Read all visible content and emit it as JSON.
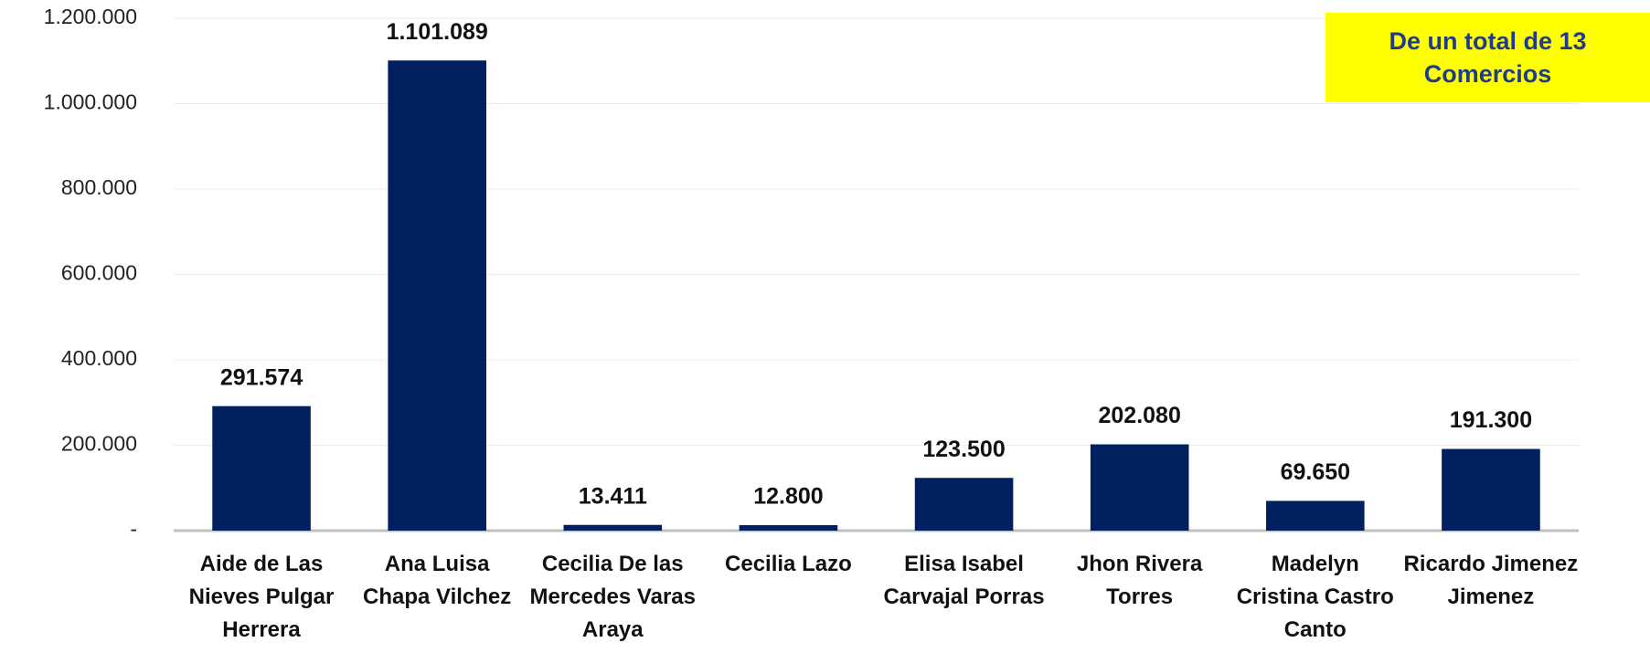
{
  "chart_data": {
    "type": "bar",
    "categories": [
      "Aide de Las Nieves Pulgar Herrera",
      "Ana Luisa Chapa Vilchez",
      "Cecilia De las Mercedes Varas Araya",
      "Cecilia Lazo",
      "Elisa Isabel Carvajal Porras",
      "Jhon Rivera Torres",
      "Madelyn Cristina Castro Canto",
      "Ricardo Jimenez Jimenez"
    ],
    "values": [
      291574,
      1101089,
      13411,
      12800,
      123500,
      202080,
      69650,
      191300
    ],
    "value_labels": [
      "291.574",
      "1.101.089",
      "13.411",
      "12.800",
      "123.500",
      "202.080",
      "69.650",
      "191.300"
    ],
    "color": "#002060",
    "ylim": [
      0,
      1200000
    ],
    "yticks": [
      {
        "value": 0,
        "label": "-"
      },
      {
        "value": 200000,
        "label": "200.000"
      },
      {
        "value": 400000,
        "label": "400.000"
      },
      {
        "value": 600000,
        "label": "600.000"
      },
      {
        "value": 800000,
        "label": "800.000"
      },
      {
        "value": 1000000,
        "label": "1.000.000"
      },
      {
        "value": 1200000,
        "label": "1.200.000"
      }
    ],
    "grid": true,
    "annotation": "De un total de 13 Comercios"
  }
}
